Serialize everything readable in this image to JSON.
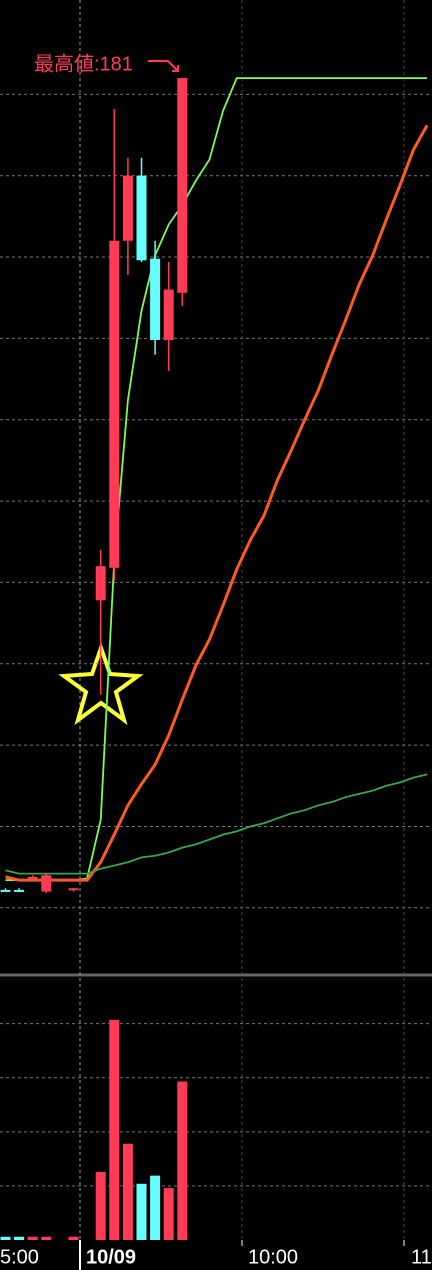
{
  "chart_data": {
    "type": "candlestick",
    "annotation": "最高値:181",
    "x_labels": [
      "5:00",
      "10/09",
      "10:00",
      "11"
    ],
    "open": [
      131.1,
      131.1,
      131.8,
      131.0,
      null,
      131.1,
      null,
      148.9,
      150.9,
      171.0,
      175.0,
      169.9,
      164.9,
      167.8
    ],
    "high": [
      131.2,
      131.2,
      132.0,
      132.1,
      null,
      131.2,
      null,
      152.0,
      179.1,
      176.1,
      176.1,
      171.0,
      169.7,
      181.0
    ],
    "low": [
      131.0,
      131.0,
      131.7,
      130.9,
      null,
      131.0,
      null,
      143.1,
      150.1,
      168.9,
      169.7,
      164.0,
      163.0,
      167.0
    ],
    "close": [
      131.1,
      131.1,
      131.9,
      132.0,
      null,
      131.2,
      null,
      151.0,
      171.0,
      175.0,
      169.8,
      164.9,
      168.0,
      181.0
    ],
    "up_color": "#ff3b55",
    "down_color": "#66ffff",
    "ylim": [
      126.3,
      185.8
    ],
    "yticks": [
      130,
      135,
      140,
      145,
      150,
      155,
      160,
      165,
      170,
      175,
      180
    ],
    "grid": true,
    "series": [
      {
        "color": "#7dff4a",
        "values": [
          131.7,
          131.7,
          131.7,
          131.7,
          131.7,
          131.7,
          131.8,
          135.4,
          151.4,
          161.2,
          166.7,
          170.1,
          172.0,
          173.2,
          174.7,
          176.0,
          179.0,
          181,
          181,
          181,
          181,
          181,
          181,
          181,
          181,
          181,
          181,
          181,
          181,
          181,
          181,
          181
        ]
      },
      {
        "color": "#ff5a1f",
        "values": [
          131.9,
          131.7,
          131.7,
          131.7,
          131.7,
          131.7,
          131.7,
          132.8,
          134.5,
          136.3,
          137.6,
          138.8,
          140.6,
          142.8,
          144.9,
          146.5,
          148.6,
          150.8,
          152.6,
          154.1,
          156.3,
          158.1,
          160.0,
          161.8,
          164.0,
          166.1,
          168.3,
          170.1,
          172.3,
          174.4,
          176.6,
          178.1
        ]
      },
      {
        "color": "#3aa64a",
        "values": [
          132.3,
          132.1,
          132.1,
          132.1,
          132.1,
          132.1,
          132.1,
          132.4,
          132.6,
          132.8,
          133.1,
          133.2,
          133.4,
          133.7,
          133.9,
          134.2,
          134.5,
          134.7,
          135.0,
          135.2,
          135.5,
          135.8,
          136.0,
          136.3,
          136.5,
          136.8,
          137.0,
          137.2,
          137.5,
          137.7,
          138.0,
          138.2
        ]
      }
    ],
    "volume": {
      "values": [
        0.06,
        0.06,
        0.06,
        0.06,
        null,
        0.06,
        null,
        1.26,
        4.07,
        1.78,
        1.04,
        1.19,
        0.96,
        2.93
      ],
      "ylim": [
        0,
        4.9
      ],
      "yticks": [
        1,
        2,
        3,
        4
      ]
    }
  }
}
